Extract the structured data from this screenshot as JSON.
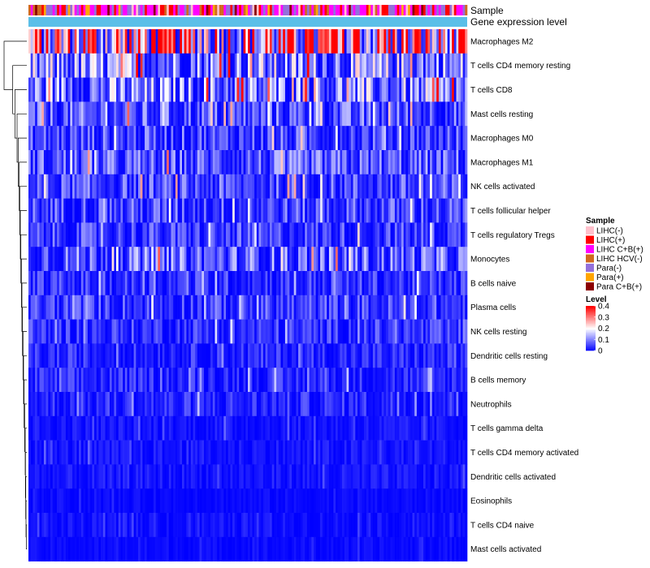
{
  "chart_data": {
    "type": "heatmap",
    "title": "",
    "n_samples": 200,
    "annotation_labels": [
      "Sample",
      "Gene expression level"
    ],
    "rows": [
      {
        "name": "Macrophages M2",
        "mean": 0.3
      },
      {
        "name": "T cells CD4 memory resting",
        "mean": 0.13
      },
      {
        "name": "T cells CD8",
        "mean": 0.12
      },
      {
        "name": "Mast cells resting",
        "mean": 0.08
      },
      {
        "name": "Macrophages M0",
        "mean": 0.07
      },
      {
        "name": "Macrophages M1",
        "mean": 0.08
      },
      {
        "name": "NK cells activated",
        "mean": 0.07
      },
      {
        "name": "T cells follicular helper",
        "mean": 0.07
      },
      {
        "name": "T cells regulatory  Tregs",
        "mean": 0.06
      },
      {
        "name": "Monocytes",
        "mean": 0.09
      },
      {
        "name": "B cells naive",
        "mean": 0.05
      },
      {
        "name": "Plasma cells",
        "mean": 0.06
      },
      {
        "name": "NK cells resting",
        "mean": 0.05
      },
      {
        "name": "Dendritic cells resting",
        "mean": 0.04
      },
      {
        "name": "B cells memory",
        "mean": 0.04
      },
      {
        "name": "Neutrophils",
        "mean": 0.04
      },
      {
        "name": "T cells gamma delta",
        "mean": 0.02
      },
      {
        "name": "T cells CD4 memory activated",
        "mean": 0.02
      },
      {
        "name": "Dendritic cells activated",
        "mean": 0.02
      },
      {
        "name": "Eosinophils",
        "mean": 0.01
      },
      {
        "name": "T cells CD4 naive",
        "mean": 0.015
      },
      {
        "name": "Mast cells activated",
        "mean": 0.01
      }
    ],
    "dendrogram_merges": [
      [
        20,
        21,
        0.01
      ],
      [
        19,
        -1,
        0.015
      ],
      [
        18,
        -2,
        0.02
      ],
      [
        17,
        -3,
        0.025
      ],
      [
        16,
        -4,
        0.03
      ],
      [
        15,
        -5,
        0.04
      ],
      [
        14,
        -6,
        0.05
      ],
      [
        13,
        -7,
        0.06
      ],
      [
        12,
        -8,
        0.07
      ],
      [
        11,
        -9,
        0.08
      ],
      [
        10,
        -10,
        0.09
      ],
      [
        9,
        -11,
        0.1
      ],
      [
        8,
        -12,
        0.11
      ],
      [
        7,
        -13,
        0.12
      ],
      [
        6,
        -14,
        0.13
      ],
      [
        5,
        -15,
        0.14
      ],
      [
        4,
        -16,
        0.16
      ],
      [
        3,
        -17,
        0.18
      ],
      [
        2,
        -18,
        0.22
      ],
      [
        1,
        -19,
        0.26
      ],
      [
        0,
        -20,
        0.42
      ]
    ],
    "sample_legend": {
      "title": "Sample",
      "items": [
        {
          "label": "LIHC(-)",
          "color": "#ffc0cb"
        },
        {
          "label": "LIHC(+)",
          "color": "#ff0000"
        },
        {
          "label": "LIHC C+B(+)",
          "color": "#ff00ff"
        },
        {
          "label": "LIHC HCV(-)",
          "color": "#d2691e"
        },
        {
          "label": "Para(-)",
          "color": "#9370db"
        },
        {
          "label": "Para(+)",
          "color": "#ffa500"
        },
        {
          "label": "Para C+B(+)",
          "color": "#8b0000"
        }
      ]
    },
    "level_legend": {
      "title": "Level",
      "ticks": [
        0.4,
        0.3,
        0.2,
        0.1,
        0
      ],
      "tick_labels": [
        "0.4",
        "0.3",
        "0.2",
        "0.1",
        "0"
      ],
      "range": [
        0,
        0.4
      ],
      "colors": {
        "low": "#0000ff",
        "mid": "#ffffff",
        "high": "#ff0000"
      }
    },
    "gene_expression_color": "#5bbfe8"
  }
}
